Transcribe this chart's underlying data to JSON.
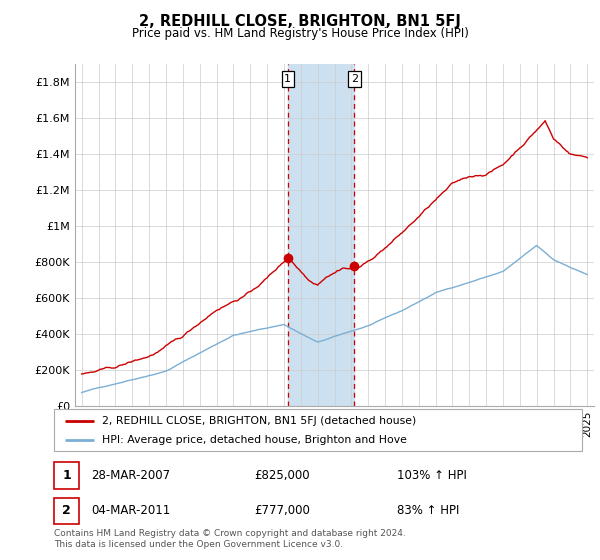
{
  "title": "2, REDHILL CLOSE, BRIGHTON, BN1 5FJ",
  "subtitle": "Price paid vs. HM Land Registry's House Price Index (HPI)",
  "ylabel_ticks": [
    "£0",
    "£200K",
    "£400K",
    "£600K",
    "£800K",
    "£1M",
    "£1.2M",
    "£1.4M",
    "£1.6M",
    "£1.8M"
  ],
  "ytick_values": [
    0,
    200000,
    400000,
    600000,
    800000,
    1000000,
    1200000,
    1400000,
    1600000,
    1800000
  ],
  "ylim": [
    0,
    1900000
  ],
  "xlim_start": 1994.6,
  "xlim_end": 2025.4,
  "purchase1_x": 2007.23,
  "purchase1_y": 825000,
  "purchase2_x": 2011.17,
  "purchase2_y": 777000,
  "shade_color": "#cde0ef",
  "red_color": "#cc0000",
  "blue_color": "#7bafd4",
  "legend_line1": "2, REDHILL CLOSE, BRIGHTON, BN1 5FJ (detached house)",
  "legend_line2": "HPI: Average price, detached house, Brighton and Hove",
  "table_row1": [
    "1",
    "28-MAR-2007",
    "£825,000",
    "103% ↑ HPI"
  ],
  "table_row2": [
    "2",
    "04-MAR-2011",
    "£777,000",
    "83% ↑ HPI"
  ],
  "footer": "Contains HM Land Registry data © Crown copyright and database right 2024.\nThis data is licensed under the Open Government Licence v3.0."
}
